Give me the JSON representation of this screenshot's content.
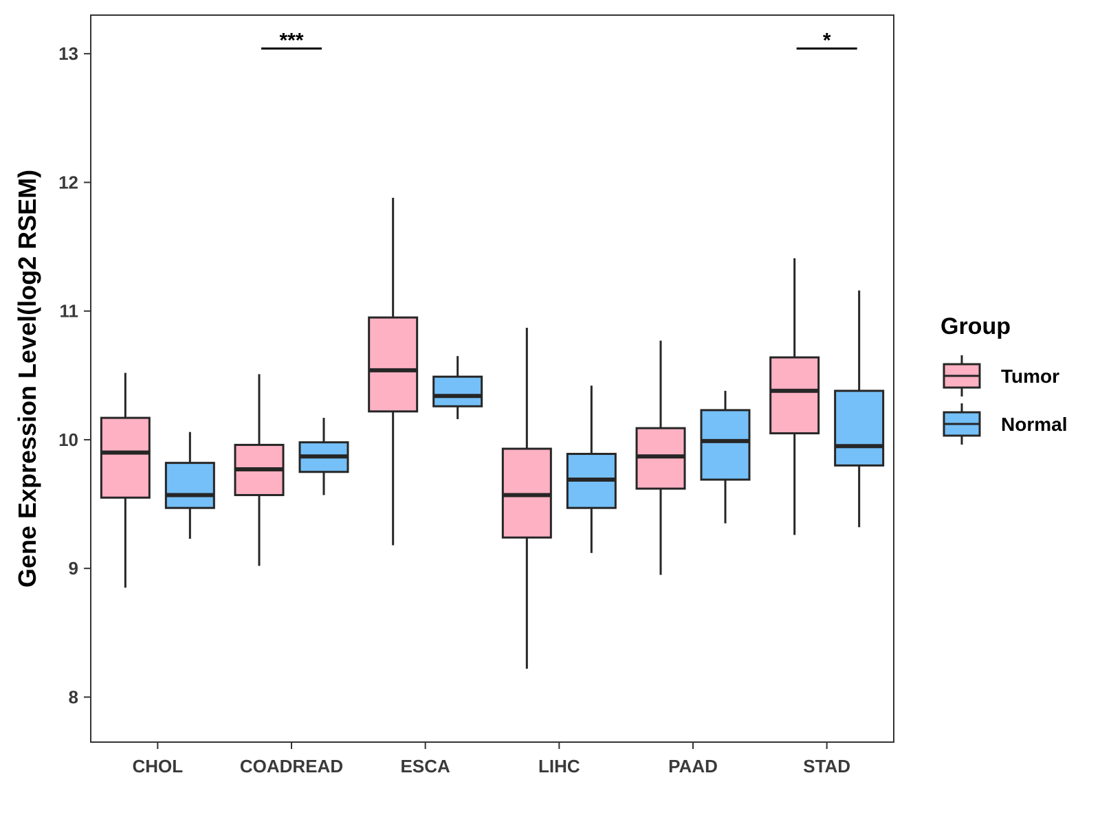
{
  "chart_data": {
    "type": "boxplot",
    "title": "",
    "xlabel": "",
    "ylabel": "Gene Expression Level(log2 RSEM)",
    "ylim": [
      7.65,
      13.3
    ],
    "yticks": [
      8,
      9,
      10,
      11,
      12,
      13
    ],
    "grid": false,
    "categories": [
      "CHOL",
      "COADREAD",
      "ESCA",
      "LIHC",
      "PAAD",
      "STAD"
    ],
    "legend": {
      "title": "Group",
      "position": "right"
    },
    "series": [
      {
        "name": "Tumor",
        "color": "#FDB1C3",
        "boxes": [
          {
            "min": 8.85,
            "q1": 9.55,
            "median": 9.9,
            "q3": 10.17,
            "max": 10.52
          },
          {
            "min": 9.02,
            "q1": 9.57,
            "median": 9.77,
            "q3": 9.96,
            "max": 10.51
          },
          {
            "min": 9.18,
            "q1": 10.22,
            "median": 10.54,
            "q3": 10.95,
            "max": 11.88
          },
          {
            "min": 8.22,
            "q1": 9.24,
            "median": 9.57,
            "q3": 9.93,
            "max": 10.87
          },
          {
            "min": 8.95,
            "q1": 9.62,
            "median": 9.87,
            "q3": 10.09,
            "max": 10.77
          },
          {
            "min": 9.26,
            "q1": 10.05,
            "median": 10.38,
            "q3": 10.64,
            "max": 11.41
          }
        ]
      },
      {
        "name": "Normal",
        "color": "#75C0F8",
        "boxes": [
          {
            "min": 9.23,
            "q1": 9.47,
            "median": 9.57,
            "q3": 9.82,
            "max": 10.06
          },
          {
            "min": 9.57,
            "q1": 9.75,
            "median": 9.87,
            "q3": 9.98,
            "max": 10.17
          },
          {
            "min": 10.16,
            "q1": 10.26,
            "median": 10.34,
            "q3": 10.49,
            "max": 10.65
          },
          {
            "min": 9.12,
            "q1": 9.47,
            "median": 9.69,
            "q3": 9.89,
            "max": 10.42
          },
          {
            "min": 9.35,
            "q1": 9.69,
            "median": 9.99,
            "q3": 10.23,
            "max": 10.38
          },
          {
            "min": 9.32,
            "q1": 9.8,
            "median": 9.95,
            "q3": 10.38,
            "max": 11.16
          }
        ]
      }
    ],
    "annotations": [
      {
        "category": "COADREAD",
        "label": "***",
        "y": 13.04
      },
      {
        "category": "STAD",
        "label": "*",
        "y": 13.04
      }
    ]
  }
}
